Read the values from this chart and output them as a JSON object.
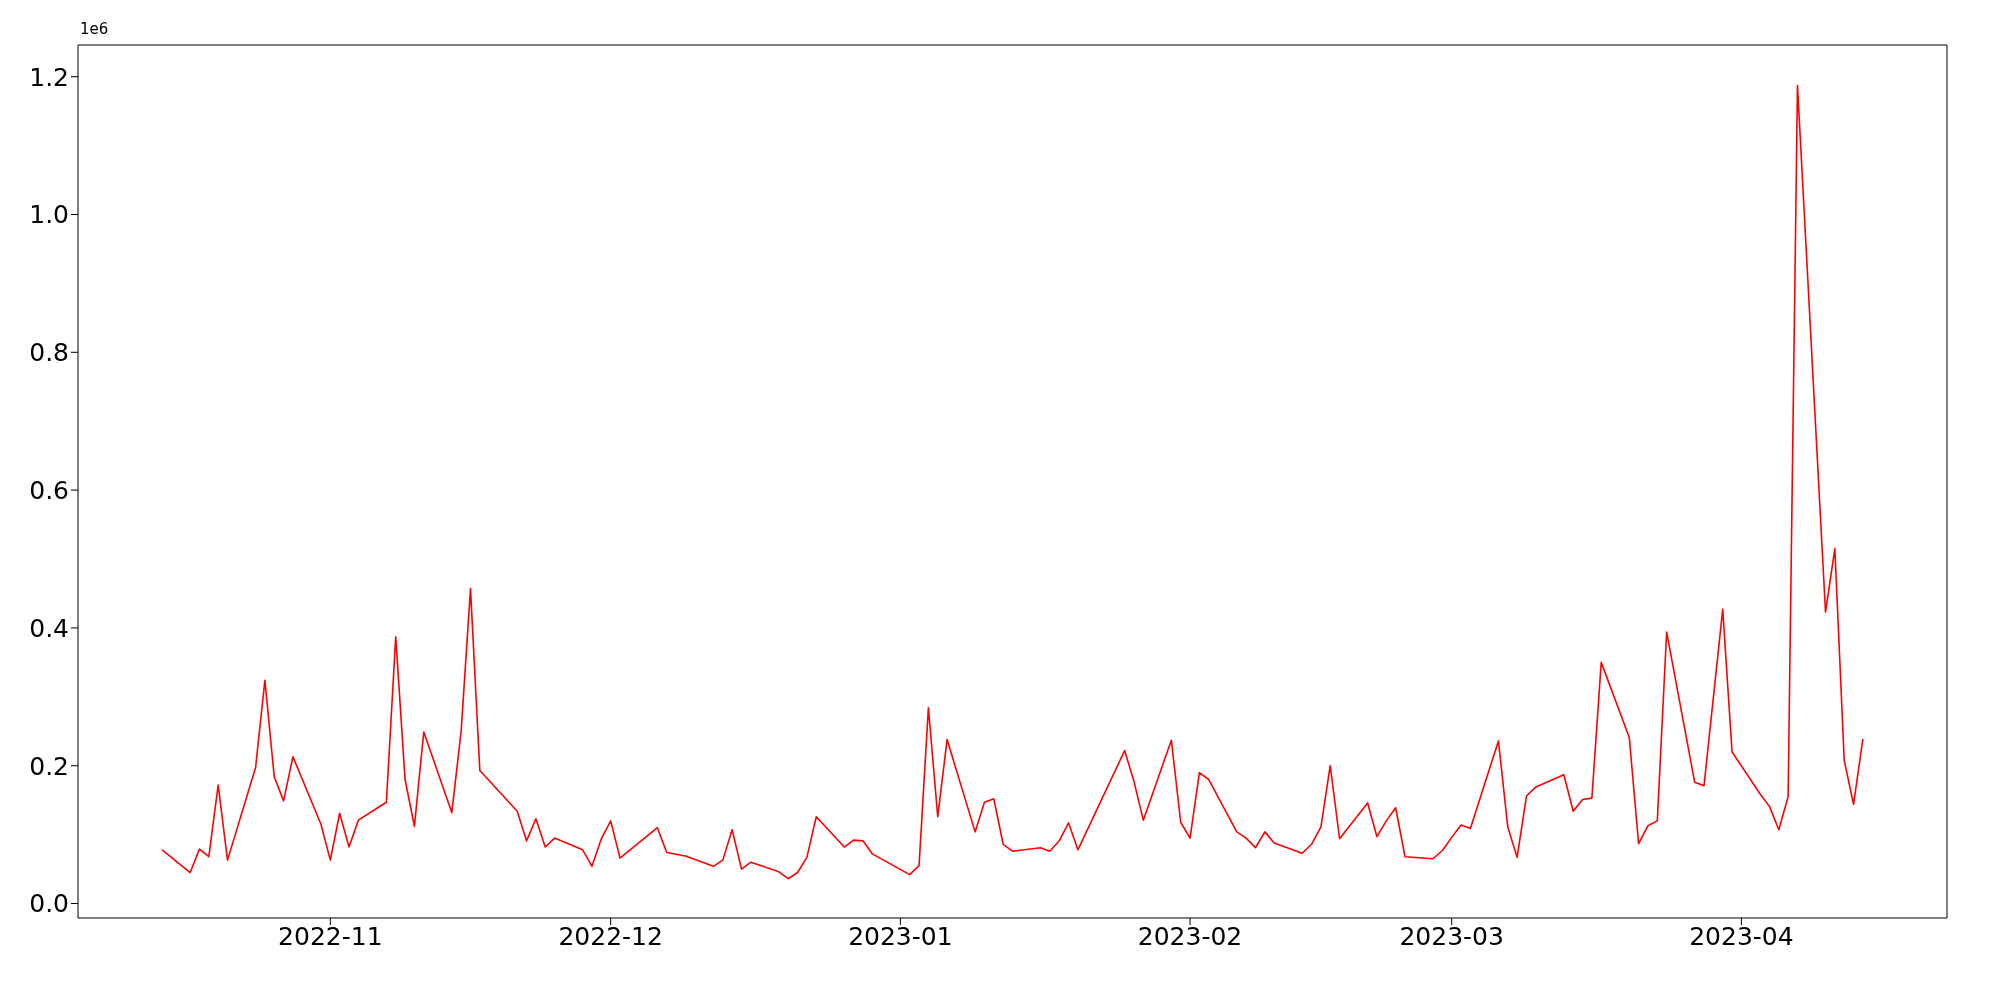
{
  "chart_data": {
    "type": "line",
    "x": [
      "2022-10-14",
      "2022-10-17",
      "2022-10-18",
      "2022-10-19",
      "2022-10-20",
      "2022-10-21",
      "2022-10-24",
      "2022-10-25",
      "2022-10-26",
      "2022-10-27",
      "2022-10-28",
      "2022-10-31",
      "2022-11-01",
      "2022-11-02",
      "2022-11-03",
      "2022-11-04",
      "2022-11-07",
      "2022-11-08",
      "2022-11-09",
      "2022-11-10",
      "2022-11-11",
      "2022-11-14",
      "2022-11-15",
      "2022-11-16",
      "2022-11-17",
      "2022-11-21",
      "2022-11-22",
      "2022-11-23",
      "2022-11-24",
      "2022-11-25",
      "2022-11-28",
      "2022-11-29",
      "2022-11-30",
      "2022-12-01",
      "2022-12-02",
      "2022-12-06",
      "2022-12-07",
      "2022-12-09",
      "2022-12-12",
      "2022-12-13",
      "2022-12-14",
      "2022-12-15",
      "2022-12-16",
      "2022-12-19",
      "2022-12-20",
      "2022-12-21",
      "2022-12-22",
      "2022-12-23",
      "2022-12-26",
      "2022-12-27",
      "2022-12-28",
      "2022-12-29",
      "2023-01-02",
      "2023-01-03",
      "2023-01-04",
      "2023-01-05",
      "2023-01-06",
      "2023-01-09",
      "2023-01-10",
      "2023-01-11",
      "2023-01-12",
      "2023-01-13",
      "2023-01-16",
      "2023-01-17",
      "2023-01-18",
      "2023-01-19",
      "2023-01-20",
      "2023-01-25",
      "2023-01-26",
      "2023-01-27",
      "2023-01-30",
      "2023-01-31",
      "2023-02-01",
      "2023-02-02",
      "2023-02-03",
      "2023-02-06",
      "2023-02-07",
      "2023-02-08",
      "2023-02-09",
      "2023-02-10",
      "2023-02-13",
      "2023-02-14",
      "2023-02-15",
      "2023-02-16",
      "2023-02-17",
      "2023-02-20",
      "2023-02-21",
      "2023-02-22",
      "2023-02-23",
      "2023-02-24",
      "2023-02-27",
      "2023-02-28",
      "2023-03-01",
      "2023-03-02",
      "2023-03-03",
      "2023-03-06",
      "2023-03-07",
      "2023-03-08",
      "2023-03-09",
      "2023-03-10",
      "2023-03-13",
      "2023-03-14",
      "2023-03-15",
      "2023-03-16",
      "2023-03-17",
      "2023-03-20",
      "2023-03-21",
      "2023-03-22",
      "2023-03-23",
      "2023-03-24",
      "2023-03-27",
      "2023-03-28",
      "2023-03-30",
      "2023-03-31",
      "2023-04-03",
      "2023-04-04",
      "2023-04-05",
      "2023-04-06",
      "2023-04-07",
      "2023-04-10",
      "2023-04-11",
      "2023-04-12",
      "2023-04-13",
      "2023-04-14"
    ],
    "series": [
      {
        "color": "#ff0000",
        "values": [
          0.078,
          0.045,
          0.079,
          0.068,
          0.172,
          0.063,
          0.197,
          0.324,
          0.184,
          0.149,
          0.213,
          0.115,
          0.063,
          0.131,
          0.082,
          0.121,
          0.147,
          0.387,
          0.18,
          0.112,
          0.249,
          0.132,
          0.25,
          0.457,
          0.193,
          0.134,
          0.091,
          0.123,
          0.082,
          0.095,
          0.078,
          0.054,
          0.094,
          0.12,
          0.066,
          0.11,
          0.074,
          0.069,
          0.054,
          0.063,
          0.107,
          0.05,
          0.06,
          0.046,
          0.036,
          0.045,
          0.067,
          0.126,
          0.082,
          0.092,
          0.091,
          0.072,
          0.042,
          0.055,
          0.284,
          0.126,
          0.238,
          0.104,
          0.147,
          0.152,
          0.086,
          0.076,
          0.081,
          0.076,
          0.091,
          0.117,
          0.078,
          0.222,
          0.177,
          0.121,
          0.237,
          0.118,
          0.095,
          0.19,
          0.18,
          0.104,
          0.095,
          0.081,
          0.104,
          0.088,
          0.073,
          0.086,
          0.111,
          0.2,
          0.094,
          0.146,
          0.097,
          0.12,
          0.139,
          0.068,
          0.065,
          0.077,
          0.096,
          0.114,
          0.109,
          0.236,
          0.111,
          0.067,
          0.156,
          0.169,
          0.187,
          0.134,
          0.151,
          0.153,
          0.35,
          0.241,
          0.087,
          0.113,
          0.12,
          0.394,
          0.176,
          0.171,
          0.427,
          0.22,
          0.159,
          0.141,
          0.107,
          0.155,
          1.187,
          0.423,
          0.515,
          0.208,
          0.144,
          0.239
        ]
      }
    ],
    "xlim": [
      "2022-10-05",
      "2023-04-23"
    ],
    "xticks": [
      "2022-11",
      "2022-12",
      "2023-01",
      "2023-02",
      "2023-03",
      "2023-04"
    ],
    "ylim": [
      -0.021,
      1.246
    ],
    "yticks": [
      {
        "value": 0,
        "label": "0.0"
      },
      0.2,
      0.4,
      0.6,
      0.8,
      {
        "value": 1,
        "label": "1.0"
      },
      1.2
    ],
    "annotations": [
      "1e6"
    ],
    "marker": "none",
    "line_style": "solid",
    "grid": false,
    "legend": false
  }
}
